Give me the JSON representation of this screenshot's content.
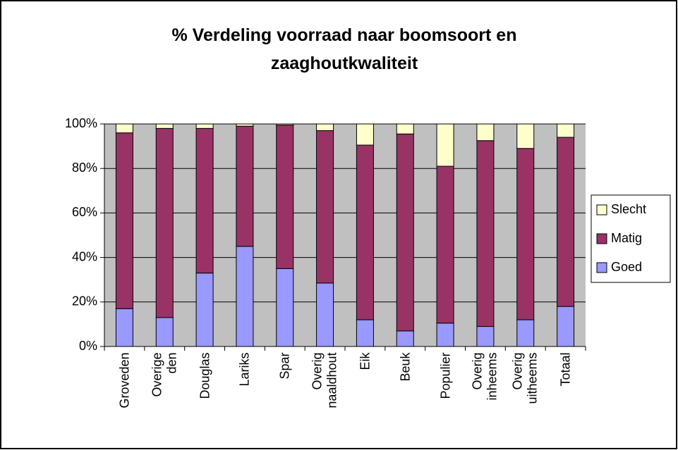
{
  "chart_data": {
    "type": "stacked_bar",
    "title": "% Verdeling voorraad naar boomsoort en zaaghoutkwaliteit",
    "categories": [
      "Groveden",
      "Overige den",
      "Douglas",
      "Lariks",
      "Spar",
      "Overig naaldhout",
      "Eik",
      "Beuk",
      "Populier",
      "Overig inheems",
      "Overig uitheems",
      "Totaal"
    ],
    "series": [
      {
        "name": "Goed",
        "color": "#9999ff",
        "values": [
          17,
          13,
          33,
          45,
          35,
          28.5,
          12,
          7,
          10.5,
          9,
          12,
          18
        ]
      },
      {
        "name": "Matig",
        "color": "#993366",
        "values": [
          79,
          85,
          65,
          54,
          64.5,
          68.5,
          78.5,
          88.5,
          70.5,
          83.5,
          77,
          76
        ]
      },
      {
        "name": "Slecht",
        "color": "#ffffcc",
        "values": [
          4,
          2,
          2,
          1,
          0.5,
          3,
          9.5,
          4.5,
          19,
          7.5,
          11,
          6
        ]
      }
    ],
    "ylim": [
      0,
      100
    ],
    "yticks": [
      {
        "value": 0,
        "label": "0%"
      },
      {
        "value": 20,
        "label": "20%"
      },
      {
        "value": 40,
        "label": "40%"
      },
      {
        "value": 60,
        "label": "60%"
      },
      {
        "value": 80,
        "label": "80%"
      },
      {
        "value": 100,
        "label": "100%"
      }
    ],
    "grid": true,
    "legend": "right",
    "plot_background": "#c0c0c0"
  }
}
